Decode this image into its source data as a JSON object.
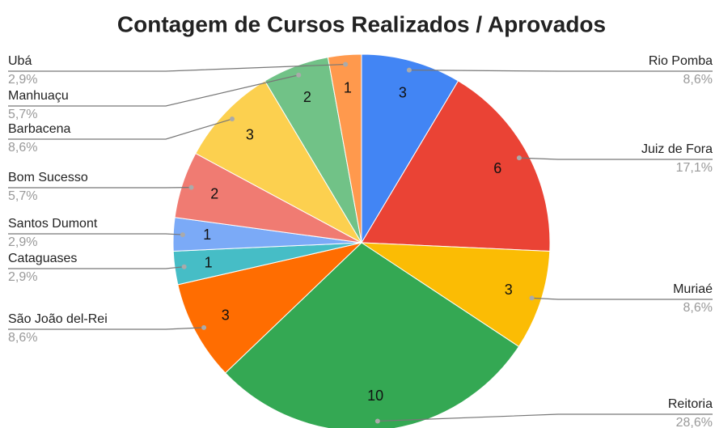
{
  "chart_data": {
    "type": "pie",
    "title": "Contagem de Cursos Realizados / Aprovados",
    "categories": [
      "Rio Pomba",
      "Juiz de Fora",
      "Muriaé",
      "Reitoria",
      "São João del-Rei",
      "Cataguases",
      "Santos Dumont",
      "Bom Sucesso",
      "Barbacena",
      "Manhuaçu",
      "Ubá"
    ],
    "values": [
      3,
      6,
      3,
      10,
      3,
      1,
      1,
      2,
      3,
      2,
      1
    ],
    "percentages": [
      8.6,
      17.1,
      8.6,
      28.6,
      8.6,
      2.9,
      2.9,
      5.7,
      8.6,
      5.7,
      2.9
    ],
    "percentage_labels": [
      "8,6%",
      "17,1%",
      "8,6%",
      "28,6%",
      "8,6%",
      "2,9%",
      "2,9%",
      "5,7%",
      "8,6%",
      "5,7%",
      "2,9%"
    ],
    "colors": [
      "#4285f4",
      "#ea4335",
      "#fbbc04",
      "#34a853",
      "#ff6d01",
      "#46bdc6",
      "#7baaf7",
      "#f07b72",
      "#fcd04f",
      "#71c287",
      "#ff994d"
    ]
  }
}
